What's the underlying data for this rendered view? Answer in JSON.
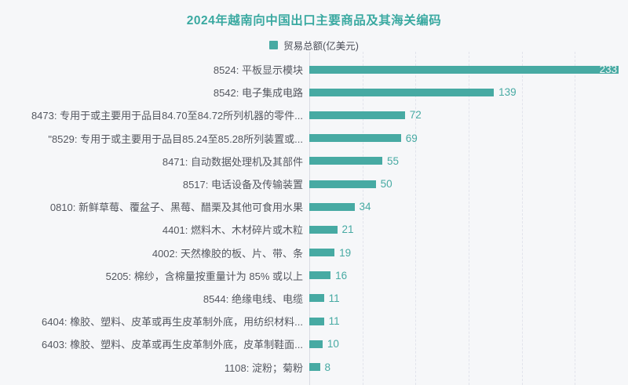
{
  "colors": {
    "background": "#f6f7f9",
    "bar": "#47aaa3",
    "title": "#3aa9a1",
    "category_text": "#54575f",
    "value_text": "#47aaa3",
    "value_text_inside_bar": "#f4f7f7",
    "gridline": "#e2e4ec",
    "axis_line": "#d9dbe3"
  },
  "chart_data": {
    "type": "bar",
    "orientation": "horizontal",
    "title": "2024年越南向中国出口主要商品及其海关编码",
    "legend": [
      "贸易总额(亿美元)"
    ],
    "legend_position": "top-center",
    "grid": true,
    "gridline_style": "dashed-vertical",
    "gridline_interval": 40,
    "xlim": [
      0,
      240
    ],
    "value_labels": true,
    "categories": [
      "8524: 平板显示模块",
      "8542: 电子集成电路",
      "8473: 专用于或主要用于品目84.70至84.72所列机器的零件...",
      "\"8529: 专用于或主要用于品目85.24至85.28所列装置或...",
      "8471: 自动数据处理机及其部件",
      "8517: 电话设备及传输装置",
      "0810: 新鲜草莓、覆盆子、黑莓、醋栗及其他可食用水果",
      "4401: 燃料木、木材碎片或木粒",
      "4002: 天然橡胶的板、片、带、条",
      "5205: 棉纱，含棉量按重量计为 85% 或以上",
      "8544: 绝缘电线、电缆",
      "6404: 橡胶、塑料、皮革或再生皮革制外底，用纺织材料...",
      "6403: 橡胶、塑料、皮革或再生皮革制外底，皮革制鞋面...",
      "1108: 淀粉；菊粉"
    ],
    "values": [
      233,
      139,
      72,
      69,
      55,
      50,
      34,
      21,
      19,
      16,
      11,
      11,
      10,
      8
    ]
  }
}
